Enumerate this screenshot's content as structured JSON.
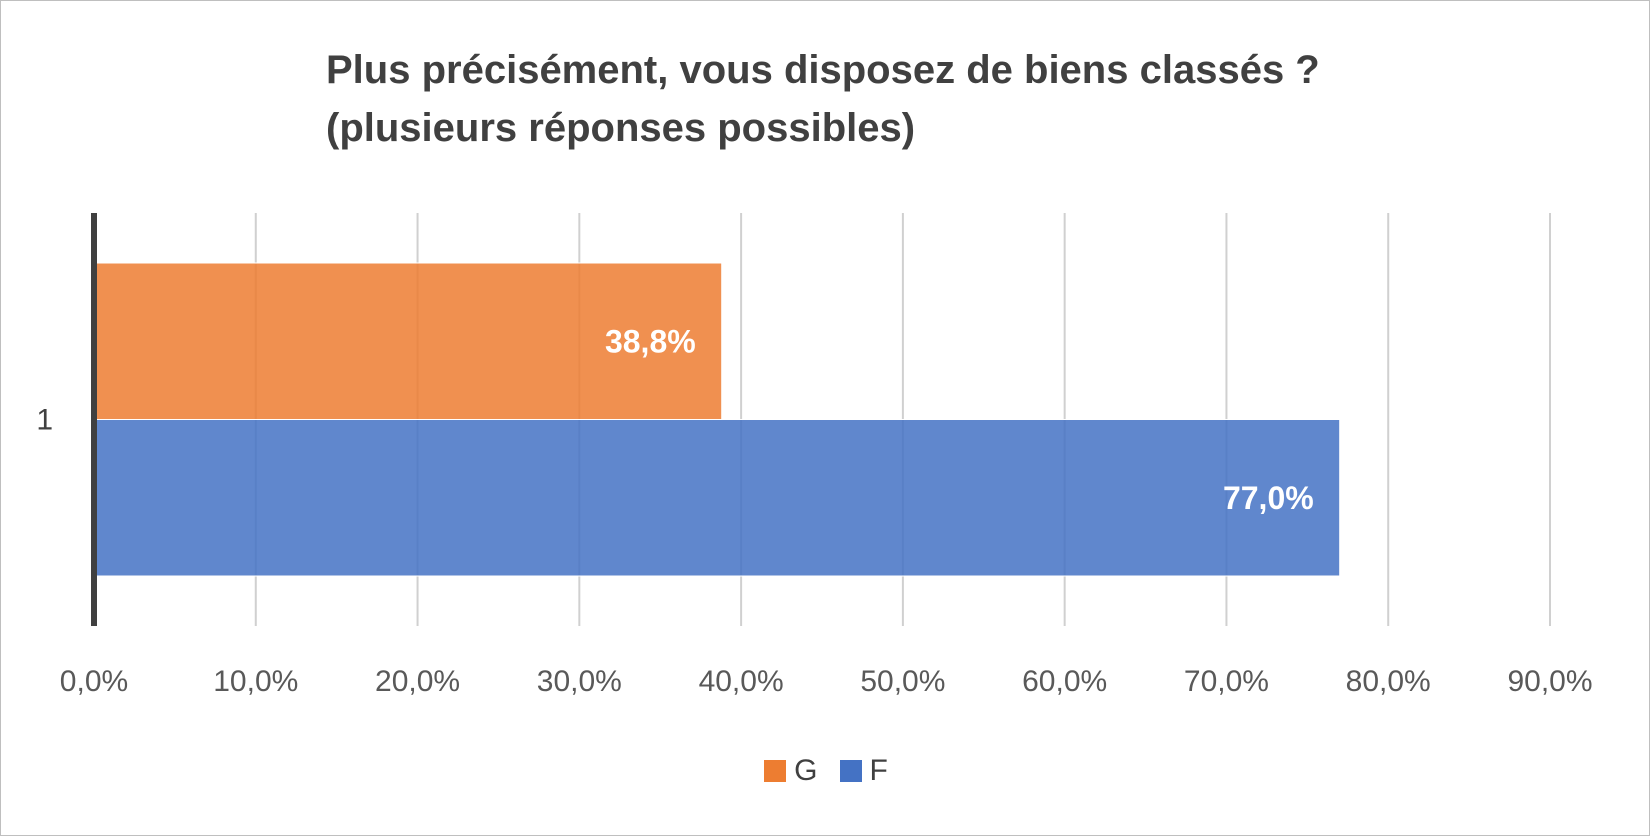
{
  "chart_data": {
    "type": "bar",
    "orientation": "horizontal",
    "title_lines": [
      "Plus précisément, vous disposez de biens classés ?",
      "(plusieurs réponses possibles)"
    ],
    "categories": [
      "1"
    ],
    "series": [
      {
        "name": "G",
        "values": [
          38.8
        ],
        "labels": [
          "38,8%"
        ],
        "color": "#ED7D31"
      },
      {
        "name": "F",
        "values": [
          77.0
        ],
        "labels": [
          "77,0%"
        ],
        "color": "#4472C4"
      }
    ],
    "xlim": [
      0,
      90
    ],
    "x_ticks": [
      0,
      10,
      20,
      30,
      40,
      50,
      60,
      70,
      80,
      90
    ],
    "x_tick_labels": [
      "0,0%",
      "10,0%",
      "20,0%",
      "30,0%",
      "40,0%",
      "50,0%",
      "60,0%",
      "70,0%",
      "80,0%",
      "90,0%"
    ],
    "grid": true,
    "legend_position": "bottom"
  }
}
